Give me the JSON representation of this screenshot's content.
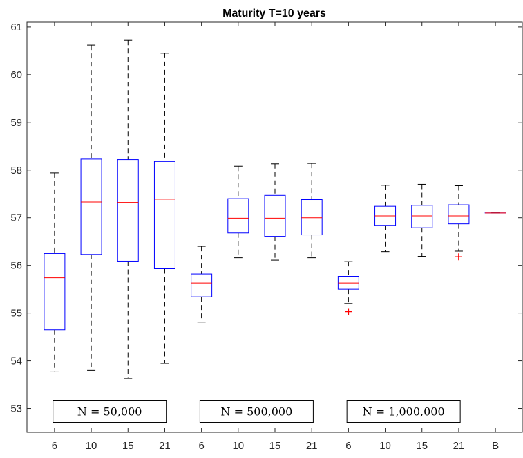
{
  "chart_data": {
    "type": "box",
    "title": "Maturity T=10 years",
    "xlabel": "",
    "ylabel": "",
    "ylim": [
      52.5,
      61.1
    ],
    "yticks": [
      53,
      54,
      55,
      56,
      57,
      58,
      59,
      60,
      61
    ],
    "categories": [
      "6",
      "10",
      "15",
      "21",
      "6",
      "10",
      "15",
      "21",
      "6",
      "10",
      "15",
      "21",
      "B"
    ],
    "grid": false,
    "colors": {
      "box": "#0000ff",
      "median": "#ff0000",
      "whisker": "#000000",
      "outlier": "#ff0000",
      "axis": "#262626"
    },
    "boxes": [
      {
        "category": "6",
        "whisker_low": 53.77,
        "q1": 54.65,
        "median": 55.74,
        "q3": 56.25,
        "whisker_high": 57.94,
        "outliers": []
      },
      {
        "category": "10",
        "whisker_low": 53.8,
        "q1": 56.23,
        "median": 57.33,
        "q3": 58.23,
        "whisker_high": 60.62,
        "outliers": []
      },
      {
        "category": "15",
        "whisker_low": 53.63,
        "q1": 56.09,
        "median": 57.32,
        "q3": 58.22,
        "whisker_high": 60.72,
        "outliers": []
      },
      {
        "category": "21",
        "whisker_low": 53.95,
        "q1": 55.93,
        "median": 57.39,
        "q3": 58.18,
        "whisker_high": 60.45,
        "outliers": []
      },
      {
        "category": "6",
        "whisker_low": 54.81,
        "q1": 55.34,
        "median": 55.63,
        "q3": 55.82,
        "whisker_high": 56.4,
        "outliers": []
      },
      {
        "category": "10",
        "whisker_low": 56.16,
        "q1": 56.68,
        "median": 56.99,
        "q3": 57.4,
        "whisker_high": 58.08,
        "outliers": []
      },
      {
        "category": "15",
        "whisker_low": 56.11,
        "q1": 56.61,
        "median": 56.99,
        "q3": 57.47,
        "whisker_high": 58.13,
        "outliers": []
      },
      {
        "category": "21",
        "whisker_low": 56.16,
        "q1": 56.64,
        "median": 57.0,
        "q3": 57.38,
        "whisker_high": 58.14,
        "outliers": []
      },
      {
        "category": "6",
        "whisker_low": 55.2,
        "q1": 55.5,
        "median": 55.63,
        "q3": 55.77,
        "whisker_high": 56.08,
        "outliers": [
          55.03
        ]
      },
      {
        "category": "10",
        "whisker_low": 56.29,
        "q1": 56.84,
        "median": 57.04,
        "q3": 57.24,
        "whisker_high": 57.68,
        "outliers": []
      },
      {
        "category": "15",
        "whisker_low": 56.19,
        "q1": 56.79,
        "median": 57.04,
        "q3": 57.26,
        "whisker_high": 57.7,
        "outliers": []
      },
      {
        "category": "21",
        "whisker_low": 56.3,
        "q1": 56.87,
        "median": 57.04,
        "q3": 57.27,
        "whisker_high": 57.67,
        "outliers": [
          56.18
        ]
      },
      {
        "category": "B",
        "whisker_low": 57.1,
        "q1": 57.1,
        "median": 57.1,
        "q3": 57.1,
        "whisker_high": 57.1,
        "outliers": []
      }
    ],
    "annotations": [
      {
        "text": "N = 50,000"
      },
      {
        "text": "N = 500,000"
      },
      {
        "text": "N = 1,000,000"
      }
    ]
  }
}
